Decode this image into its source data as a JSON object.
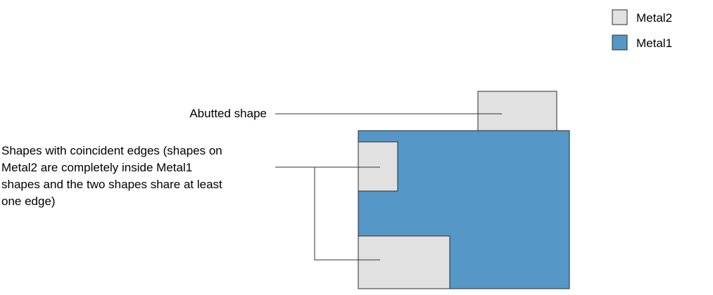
{
  "legend": {
    "items": [
      {
        "label": "Metal2",
        "color": "#e1e1e1"
      },
      {
        "label": "Metal1",
        "color": "#5597c6"
      }
    ]
  },
  "annotations": {
    "abutted": "Abutted shape",
    "coincident_lines": [
      "Shapes with coincident edges (shapes on",
      "Metal2 are completely inside Metal1",
      "shapes and the two shapes share at least",
      "one edge)"
    ]
  },
  "colors": {
    "metal1": "#5597c6",
    "metal2": "#e1e1e1",
    "outline": "#2b2b2b",
    "leader": "#333333"
  }
}
